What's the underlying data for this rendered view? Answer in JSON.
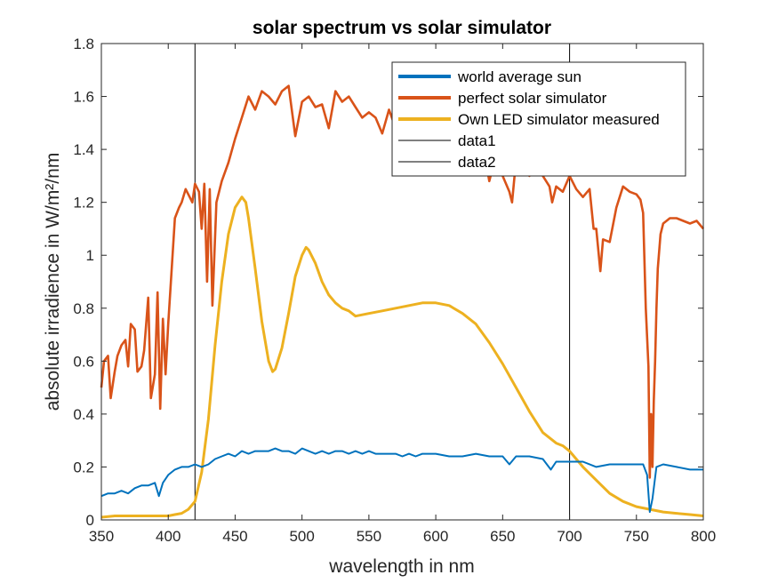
{
  "chart_data": {
    "type": "line",
    "title": "solar spectrum vs solar simulator",
    "xlabel": "wavelength in nm",
    "ylabel": "absolute irradience in W/m²/nm",
    "xlim": [
      350,
      800
    ],
    "ylim": [
      0,
      1.8
    ],
    "xticks": [
      "350",
      "400",
      "450",
      "500",
      "550",
      "600",
      "650",
      "700",
      "750",
      "800"
    ],
    "yticks": [
      "0",
      "0.2",
      "0.4",
      "0.6",
      "0.8",
      "1",
      "1.2",
      "1.4",
      "1.6",
      "1.8"
    ],
    "grid": false,
    "legend_position": "top-right",
    "colors": {
      "world": "#0072BD",
      "perfect": "#D95319",
      "led": "#EDB120",
      "vline": "#000000",
      "axis": "#262626"
    },
    "series": [
      {
        "name": "world average sun",
        "x": [
          350,
          355,
          360,
          365,
          370,
          375,
          380,
          385,
          390,
          393,
          396,
          400,
          405,
          410,
          415,
          420,
          425,
          430,
          435,
          440,
          445,
          450,
          455,
          460,
          465,
          470,
          475,
          480,
          485,
          490,
          495,
          500,
          505,
          510,
          515,
          520,
          525,
          530,
          535,
          540,
          545,
          550,
          555,
          560,
          565,
          570,
          575,
          580,
          585,
          590,
          595,
          600,
          610,
          620,
          630,
          640,
          650,
          655,
          660,
          670,
          680,
          686,
          690,
          700,
          710,
          720,
          730,
          740,
          750,
          755,
          758,
          760,
          762,
          765,
          770,
          780,
          790,
          800
        ],
        "y": [
          0.09,
          0.1,
          0.1,
          0.11,
          0.1,
          0.12,
          0.13,
          0.13,
          0.14,
          0.09,
          0.14,
          0.17,
          0.19,
          0.2,
          0.2,
          0.21,
          0.2,
          0.21,
          0.23,
          0.24,
          0.25,
          0.24,
          0.26,
          0.25,
          0.26,
          0.26,
          0.26,
          0.27,
          0.26,
          0.26,
          0.25,
          0.27,
          0.26,
          0.25,
          0.26,
          0.25,
          0.26,
          0.26,
          0.25,
          0.26,
          0.25,
          0.26,
          0.25,
          0.25,
          0.25,
          0.25,
          0.24,
          0.25,
          0.24,
          0.25,
          0.25,
          0.25,
          0.24,
          0.24,
          0.25,
          0.24,
          0.24,
          0.21,
          0.24,
          0.24,
          0.23,
          0.19,
          0.22,
          0.22,
          0.22,
          0.2,
          0.21,
          0.21,
          0.21,
          0.21,
          0.17,
          0.03,
          0.08,
          0.2,
          0.21,
          0.2,
          0.19,
          0.19
        ]
      },
      {
        "name": "perfect solar simulator",
        "x": [
          350,
          352,
          355,
          357,
          360,
          362,
          365,
          368,
          370,
          372,
          375,
          377,
          380,
          382,
          385,
          387,
          390,
          392,
          394,
          396,
          398,
          400,
          402,
          405,
          408,
          410,
          413,
          415,
          418,
          420,
          423,
          425,
          427,
          429,
          431,
          433,
          436,
          440,
          445,
          450,
          455,
          460,
          465,
          470,
          475,
          480,
          485,
          490,
          495,
          500,
          505,
          510,
          515,
          520,
          525,
          530,
          535,
          540,
          545,
          550,
          555,
          560,
          565,
          570,
          575,
          580,
          585,
          590,
          595,
          600,
          605,
          610,
          615,
          620,
          625,
          630,
          635,
          640,
          645,
          650,
          655,
          657,
          660,
          665,
          670,
          675,
          680,
          685,
          687,
          690,
          695,
          700,
          705,
          710,
          715,
          718,
          720,
          723,
          725,
          730,
          735,
          740,
          745,
          750,
          753,
          755,
          757,
          759,
          760,
          761,
          762,
          763,
          764,
          765,
          766,
          768,
          770,
          775,
          780,
          785,
          790,
          795,
          800
        ],
        "y": [
          0.5,
          0.6,
          0.62,
          0.46,
          0.56,
          0.62,
          0.66,
          0.68,
          0.58,
          0.74,
          0.72,
          0.56,
          0.58,
          0.64,
          0.84,
          0.46,
          0.55,
          0.86,
          0.42,
          0.76,
          0.55,
          0.74,
          0.9,
          1.14,
          1.18,
          1.2,
          1.25,
          1.23,
          1.2,
          1.27,
          1.24,
          1.1,
          1.27,
          0.9,
          1.25,
          0.81,
          1.2,
          1.28,
          1.35,
          1.44,
          1.52,
          1.6,
          1.55,
          1.62,
          1.6,
          1.57,
          1.62,
          1.64,
          1.45,
          1.58,
          1.6,
          1.56,
          1.57,
          1.48,
          1.62,
          1.58,
          1.6,
          1.56,
          1.52,
          1.54,
          1.52,
          1.46,
          1.55,
          1.48,
          1.5,
          1.49,
          1.44,
          1.5,
          1.46,
          1.4,
          1.47,
          1.42,
          1.38,
          1.44,
          1.36,
          1.35,
          1.42,
          1.28,
          1.38,
          1.3,
          1.24,
          1.2,
          1.36,
          1.34,
          1.3,
          1.32,
          1.3,
          1.26,
          1.2,
          1.26,
          1.24,
          1.3,
          1.25,
          1.22,
          1.25,
          1.1,
          1.1,
          0.94,
          1.06,
          1.05,
          1.18,
          1.26,
          1.24,
          1.23,
          1.21,
          1.16,
          0.8,
          0.58,
          0.16,
          0.4,
          0.2,
          0.45,
          0.6,
          0.8,
          0.95,
          1.08,
          1.12,
          1.14,
          1.14,
          1.13,
          1.12,
          1.13,
          1.1
        ]
      },
      {
        "name": "Own LED simulator measured",
        "x": [
          350,
          360,
          370,
          380,
          390,
          400,
          405,
          410,
          415,
          420,
          425,
          430,
          435,
          440,
          445,
          450,
          455,
          458,
          460,
          465,
          470,
          475,
          478,
          480,
          485,
          490,
          495,
          500,
          503,
          505,
          510,
          515,
          520,
          525,
          530,
          535,
          540,
          550,
          560,
          570,
          580,
          590,
          600,
          610,
          620,
          630,
          640,
          650,
          660,
          670,
          680,
          690,
          695,
          700,
          710,
          720,
          730,
          740,
          750,
          760,
          770,
          780,
          790,
          800
        ],
        "y": [
          0.01,
          0.015,
          0.015,
          0.015,
          0.015,
          0.015,
          0.02,
          0.025,
          0.04,
          0.07,
          0.18,
          0.38,
          0.66,
          0.9,
          1.08,
          1.18,
          1.22,
          1.2,
          1.14,
          0.95,
          0.75,
          0.6,
          0.56,
          0.57,
          0.65,
          0.78,
          0.92,
          1.0,
          1.03,
          1.02,
          0.97,
          0.9,
          0.85,
          0.82,
          0.8,
          0.79,
          0.77,
          0.78,
          0.79,
          0.8,
          0.81,
          0.82,
          0.82,
          0.81,
          0.78,
          0.74,
          0.67,
          0.59,
          0.5,
          0.41,
          0.33,
          0.29,
          0.28,
          0.26,
          0.2,
          0.15,
          0.1,
          0.07,
          0.05,
          0.04,
          0.03,
          0.025,
          0.02,
          0.015
        ]
      },
      {
        "name": "data1",
        "x": [
          420,
          420
        ],
        "y": [
          0,
          1.8
        ]
      },
      {
        "name": "data2",
        "x": [
          700,
          700
        ],
        "y": [
          0,
          1.8
        ]
      }
    ]
  }
}
